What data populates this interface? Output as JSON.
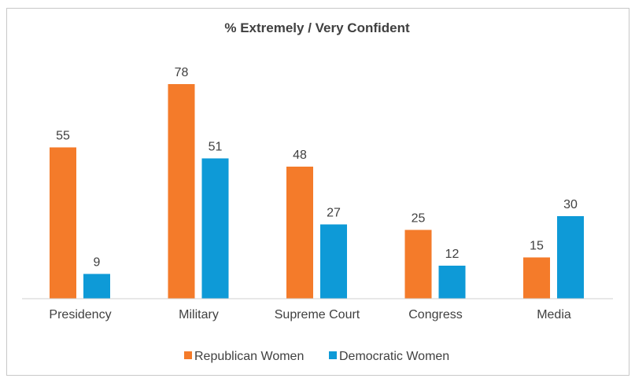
{
  "chart_data": {
    "type": "bar",
    "title": "% Extremely / Very Confident",
    "categories": [
      "Presidency",
      "Military",
      "Supreme Court",
      "Congress",
      "Media"
    ],
    "series": [
      {
        "name": "Republican Women",
        "color": "#f47b2a",
        "values": [
          55,
          78,
          48,
          25,
          15
        ]
      },
      {
        "name": "Democratic Women",
        "color": "#0e9ad7",
        "values": [
          9,
          51,
          27,
          12,
          30
        ]
      }
    ],
    "ylim": [
      0,
      100
    ],
    "grid": false,
    "legend": "bottom"
  }
}
